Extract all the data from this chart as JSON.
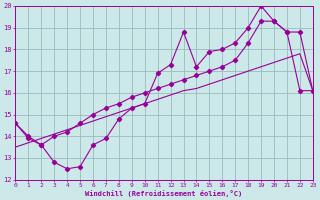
{
  "xlabel": "Windchill (Refroidissement éolien,°C)",
  "xlim": [
    0,
    23
  ],
  "ylim": [
    12,
    20
  ],
  "xtick_labels": [
    "0",
    "1",
    "2",
    "3",
    "4",
    "5",
    "6",
    "7",
    "8",
    "9",
    "10",
    "11",
    "12",
    "13",
    "14",
    "15",
    "16",
    "17",
    "18",
    "19",
    "20",
    "21",
    "22",
    "23"
  ],
  "ytick_labels": [
    "12",
    "13",
    "14",
    "15",
    "16",
    "17",
    "18",
    "19",
    "20"
  ],
  "bg_color": "#cce8e8",
  "line_color": "#990099",
  "grid_color": "#99bbbb",
  "line1_x": [
    0,
    1,
    2,
    3,
    4,
    5,
    6,
    7,
    8,
    9,
    10,
    11,
    12,
    13,
    14,
    15,
    16,
    17,
    18,
    19,
    20,
    21,
    22,
    23
  ],
  "line1_y": [
    14.6,
    13.9,
    13.6,
    12.8,
    12.5,
    12.6,
    13.6,
    13.9,
    14.8,
    15.3,
    15.5,
    16.9,
    17.3,
    18.8,
    17.2,
    17.9,
    18.0,
    18.3,
    19.0,
    20.0,
    19.3,
    18.8,
    16.1,
    16.1
  ],
  "line2_x": [
    0,
    1,
    2,
    3,
    4,
    5,
    6,
    7,
    8,
    9,
    10,
    11,
    12,
    13,
    14,
    15,
    16,
    17,
    18,
    19,
    20,
    21,
    22,
    23
  ],
  "line2_y": [
    14.6,
    14.0,
    13.6,
    14.0,
    14.2,
    14.6,
    15.0,
    15.3,
    15.5,
    15.8,
    16.0,
    16.2,
    16.4,
    16.6,
    16.8,
    17.0,
    17.2,
    17.5,
    18.3,
    19.3,
    19.3,
    18.8,
    18.8,
    16.1
  ],
  "line3_x": [
    0,
    1,
    2,
    3,
    4,
    5,
    6,
    7,
    8,
    9,
    10,
    11,
    12,
    13,
    14,
    15,
    16,
    17,
    18,
    19,
    20,
    21,
    22,
    23
  ],
  "line3_y": [
    13.5,
    13.7,
    13.9,
    14.1,
    14.3,
    14.5,
    14.7,
    14.9,
    15.1,
    15.3,
    15.5,
    15.7,
    15.9,
    16.1,
    16.2,
    16.4,
    16.6,
    16.8,
    17.0,
    17.2,
    17.4,
    17.6,
    17.8,
    16.1
  ]
}
